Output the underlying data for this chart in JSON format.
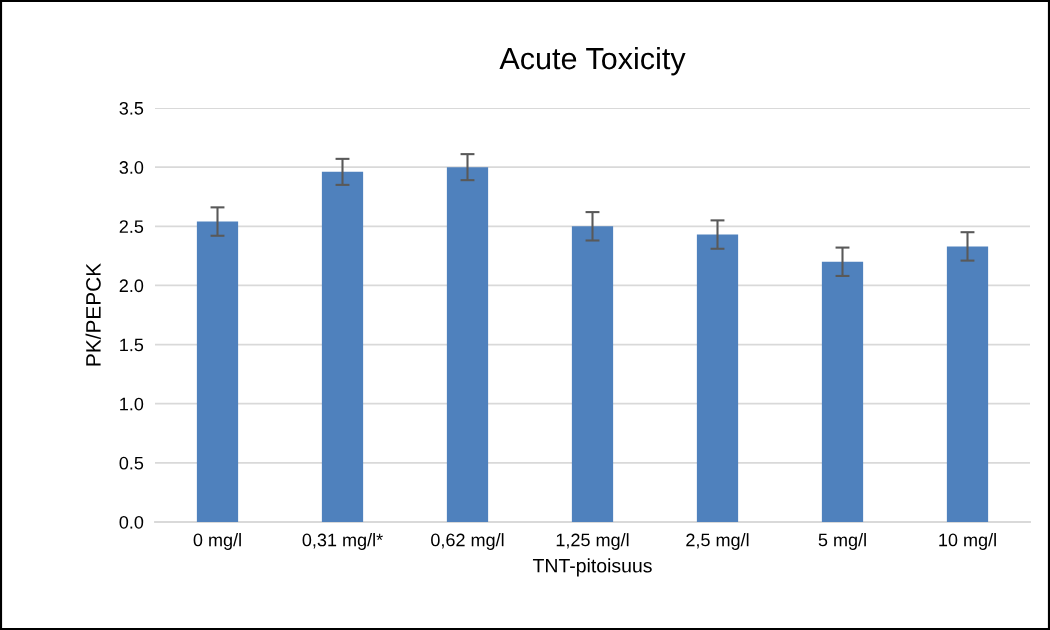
{
  "chart_data": {
    "type": "bar",
    "title": "Acute Toxicity",
    "xlabel": "TNT-pitoisuus",
    "ylabel": "PK/PEPCK",
    "categories": [
      "0 mg/l",
      "0,31 mg/l*",
      "0,62 mg/l",
      "1,25 mg/l",
      "2,5 mg/l",
      "5 mg/l",
      "10 mg/l"
    ],
    "values": [
      2.54,
      2.96,
      3.0,
      2.5,
      2.43,
      2.2,
      2.33
    ],
    "errors": [
      0.12,
      0.11,
      0.11,
      0.12,
      0.12,
      0.12,
      0.12
    ],
    "color": "#4f81bd",
    "ylim": [
      0,
      3.5
    ],
    "yticks": [
      {
        "value": 0,
        "label": "0.0"
      },
      {
        "value": 0.5,
        "label": "0.5"
      },
      {
        "value": 1,
        "label": "1.0"
      },
      {
        "value": 1.5,
        "label": "1.5"
      },
      {
        "value": 2,
        "label": "2.0"
      },
      {
        "value": 2.5,
        "label": "2.5"
      },
      {
        "value": 3,
        "label": "3.0"
      },
      {
        "value": 3.5,
        "label": "3.5"
      }
    ],
    "grid": "y"
  }
}
